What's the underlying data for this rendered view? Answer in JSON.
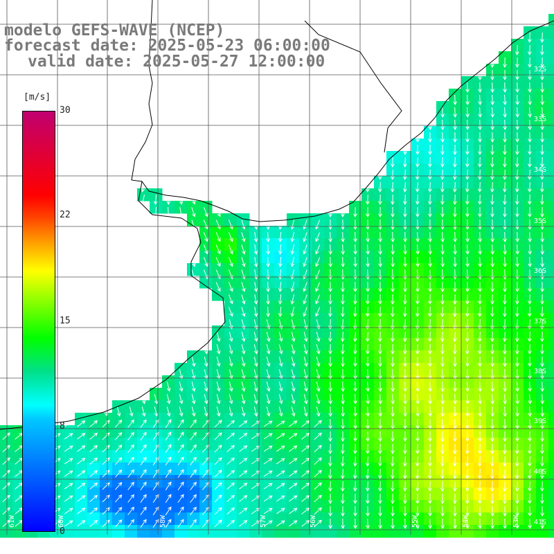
{
  "title": {
    "line1": "modelo GEFS-WAVE (NCEP)",
    "line2": "forecast date: 2025-05-23 06:00:00",
    "line3": "valid date: 2025-05-27 12:00:00"
  },
  "colorbar": {
    "unit": "[m/s]",
    "ticks": [
      "30",
      "22",
      "15",
      "8",
      "0"
    ],
    "tick_values": [
      30,
      22,
      15,
      8,
      0
    ],
    "min": 0,
    "max": 30,
    "colors": [
      "#0000ff",
      "#00c8ff",
      "#00ffff",
      "#00ff00",
      "#ffff00",
      "#ff4000",
      "#ff0000",
      "#c00070"
    ]
  },
  "lat_labels": [
    "32S",
    "33S",
    "34S",
    "35S",
    "36S",
    "37S",
    "38S",
    "39S",
    "40S",
    "41S"
  ],
  "lat_values": [
    -32,
    -33,
    -34,
    -35,
    -36,
    -37,
    -38,
    -39,
    -40,
    -41
  ],
  "lon_labels": [
    "61W",
    "60W",
    "59W",
    "58W",
    "57W",
    "56W",
    "55W",
    "54W",
    "53W"
  ],
  "lon_values": [
    -61,
    -60,
    -59,
    -58,
    -57,
    -56,
    -55,
    -54,
    -53
  ],
  "map": {
    "extent": {
      "lon_min": -61.1,
      "lon_max": -50.5,
      "lat_min": -41.5,
      "lat_max": -31.3
    },
    "land_color": "#ffffff",
    "grid_color": "#555555",
    "coast_color": "#000000",
    "arrow_color": "#ffffff"
  }
}
